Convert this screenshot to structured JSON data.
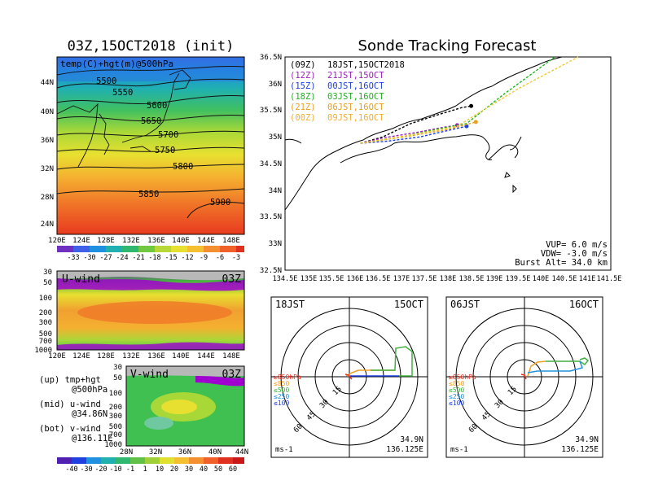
{
  "map_panel": {
    "title": "03Z,15OCT2018 (init)",
    "label": "temp(C)+hgt(m)@500hPa",
    "lat_ticks": [
      "44N",
      "40N",
      "36N",
      "32N",
      "28N",
      "24N"
    ],
    "lon_ticks": [
      "120E",
      "124E",
      "128E",
      "132E",
      "136E",
      "140E",
      "144E",
      "148E"
    ],
    "contours": [
      "5500",
      "5550",
      "5600",
      "5650",
      "5700",
      "5750",
      "5800",
      "5850",
      "5900"
    ],
    "colorbar": [
      "-33",
      "-30",
      "-27",
      "-24",
      "-21",
      "-18",
      "-15",
      "-12",
      "-9",
      "-6",
      "-3"
    ]
  },
  "uwind_panel": {
    "label": "U-wind",
    "time": "03Z",
    "p_ticks": [
      "30",
      "50",
      "100",
      "200",
      "300",
      "500",
      "700",
      "1000"
    ],
    "lon_ticks": [
      "120E",
      "124E",
      "128E",
      "132E",
      "136E",
      "140E",
      "144E",
      "148E"
    ]
  },
  "vwind_panel": {
    "label": "V-wind",
    "time": "03Z",
    "p_ticks": [
      "30",
      "50",
      "100",
      "200",
      "300",
      "500",
      "700",
      "1000"
    ],
    "lat_ticks": [
      "28N",
      "32N",
      "36N",
      "40N",
      "44N"
    ],
    "colorbar": [
      "-40",
      "-30",
      "-20",
      "-10",
      "-1",
      "1",
      "10",
      "20",
      "30",
      "40",
      "50",
      "60"
    ]
  },
  "legend_text": {
    "up": "(up) tmp+hgt",
    "up2": "@500hPa",
    "mid": "(mid) u-wind",
    "mid2": "@34.86N",
    "bot": "(bot) v-wind",
    "bot2": "@136.11E"
  },
  "track_panel": {
    "title": "Sonde Tracking Forecast",
    "lat_ticks": [
      "36.5N",
      "36N",
      "35.5N",
      "35N",
      "34.5N",
      "34N",
      "33.5N",
      "33N",
      "32.5N"
    ],
    "lon_ticks": [
      "134.5E",
      "135E",
      "135.5E",
      "136E",
      "136.5E",
      "137E",
      "137.5E",
      "138E",
      "138.5E",
      "139E",
      "139.5E",
      "140E",
      "140.5E",
      "141E",
      "141.5E"
    ],
    "runs": [
      {
        "id": "(09Z)",
        "time": "18JST,15OCT2018",
        "color": "#000000"
      },
      {
        "id": "(12Z)",
        "time": "21JST,15OCT",
        "color": "#9b1fc0"
      },
      {
        "id": "(15Z)",
        "time": "00JST,16OCT",
        "color": "#1f3fe0"
      },
      {
        "id": "(18Z)",
        "time": "03JST,16OCT",
        "color": "#22b022"
      },
      {
        "id": "(21Z)",
        "time": "06JST,16OCT",
        "color": "#e8a020"
      },
      {
        "id": "(00Z)",
        "time": "09JST,16OCT",
        "color": "#f0c830"
      }
    ],
    "params": [
      "VUP=  6.0 m/s",
      "VDW= -3.0 m/s",
      "Burst Alt= 34.0 km"
    ]
  },
  "hodo_left": {
    "time": "18JST",
    "date": "15OCT",
    "ring_labels": [
      "15",
      "30",
      "45",
      "60"
    ],
    "levels": [
      "≥850hPa",
      "≤850",
      "≤500",
      "≤250",
      "≤100"
    ],
    "level_colors": [
      "#e83020",
      "#f0a020",
      "#40b040",
      "#2090e0",
      "#2040e0"
    ],
    "units": "ms-1",
    "lat": "34.9N",
    "lon": "136.125E"
  },
  "hodo_right": {
    "time": "06JST",
    "date": "16OCT",
    "ring_labels": [
      "15",
      "30",
      "45",
      "60"
    ],
    "levels": [
      "≥850hPa",
      "≤850",
      "≤500",
      "≤250",
      "≤100"
    ],
    "level_colors": [
      "#e83020",
      "#f0a020",
      "#40b040",
      "#2090e0",
      "#2040e0"
    ],
    "units": "ms-1",
    "lat": "34.9N",
    "lon": "136.125E"
  },
  "chart_data": [
    {
      "type": "heatmap",
      "title": "03Z,15OCT2018 (init)",
      "subtitle": "temp(C)+hgt(m)@500hPa",
      "xlabel": "",
      "ylabel": "",
      "xlim": [
        120,
        150
      ],
      "ylim": [
        22,
        47
      ],
      "colorbar_levels": [
        -33,
        -30,
        -27,
        -24,
        -21,
        -18,
        -15,
        -12,
        -9,
        -6,
        -3
      ],
      "height_contours": [
        5500,
        5550,
        5600,
        5650,
        5700,
        5750,
        5800,
        5850,
        5900
      ]
    },
    {
      "type": "heatmap",
      "title": "U-wind",
      "xlabel": "",
      "ylabel": "",
      "xlim": [
        120,
        150
      ],
      "ylim": [
        1000,
        30
      ],
      "scale": "log"
    },
    {
      "type": "heatmap",
      "title": "V-wind",
      "xlabel": "",
      "ylabel": "",
      "xlim": [
        28,
        44
      ],
      "ylim": [
        1000,
        30
      ],
      "scale": "log",
      "colorbar_levels": [
        -40,
        -30,
        -20,
        -10,
        -1,
        1,
        10,
        20,
        30,
        40,
        50,
        60
      ]
    },
    {
      "type": "line",
      "title": "Sonde Tracking Forecast",
      "xlim": [
        134.5,
        141.5
      ],
      "ylim": [
        32.5,
        36.5
      ],
      "series": [
        {
          "name": "(09Z)",
          "values": [
            [
              136.12,
              34.88
            ],
            [
              136.6,
              35.0
            ],
            [
              137.2,
              35.25
            ],
            [
              137.8,
              35.42
            ],
            [
              138.3,
              35.55
            ],
            [
              138.5,
              35.58
            ]
          ]
        },
        {
          "name": "(12Z)",
          "values": [
            [
              136.12,
              34.88
            ],
            [
              136.6,
              34.98
            ],
            [
              137.3,
              35.08
            ],
            [
              137.9,
              35.18
            ],
            [
              138.2,
              35.22
            ]
          ]
        },
        {
          "name": "(15Z)",
          "values": [
            [
              136.12,
              34.88
            ],
            [
              136.7,
              34.92
            ],
            [
              137.4,
              35.0
            ],
            [
              138.0,
              35.12
            ],
            [
              138.4,
              35.2
            ]
          ]
        },
        {
          "name": "(18Z)",
          "values": [
            [
              136.12,
              34.88
            ],
            [
              137.0,
              35.0
            ],
            [
              137.8,
              35.15
            ],
            [
              138.4,
              35.25
            ],
            [
              139.2,
              35.8
            ],
            [
              140.3,
              36.8
            ]
          ]
        },
        {
          "name": "(21Z)",
          "values": [
            [
              136.12,
              34.88
            ],
            [
              137.2,
              35.02
            ],
            [
              138.0,
              35.14
            ],
            [
              138.6,
              35.28
            ]
          ]
        },
        {
          "name": "(00Z)",
          "values": [
            [
              136.12,
              34.88
            ],
            [
              137.3,
              35.05
            ],
            [
              138.2,
              35.2
            ],
            [
              139.5,
              35.9
            ],
            [
              140.8,
              36.8
            ]
          ]
        }
      ]
    }
  ]
}
